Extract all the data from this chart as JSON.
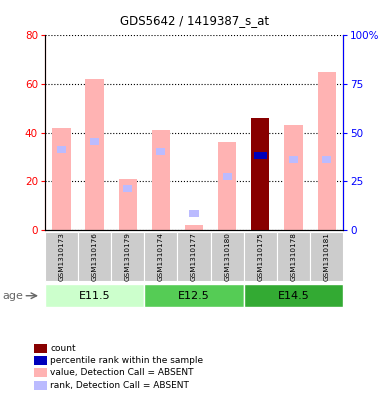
{
  "title": "GDS5642 / 1419387_s_at",
  "samples": [
    "GSM1310173",
    "GSM1310176",
    "GSM1310179",
    "GSM1310174",
    "GSM1310177",
    "GSM1310180",
    "GSM1310175",
    "GSM1310178",
    "GSM1310181"
  ],
  "age_groups": [
    {
      "label": "E11.5",
      "start": 0,
      "end": 3
    },
    {
      "label": "E12.5",
      "start": 3,
      "end": 6
    },
    {
      "label": "E14.5",
      "start": 6,
      "end": 9
    }
  ],
  "age_colors": [
    "#ccffcc",
    "#55cc55",
    "#33aa33"
  ],
  "value_absent": [
    42,
    62,
    21,
    41,
    2,
    36,
    0,
    43,
    65
  ],
  "rank_absent_pct": [
    41,
    45,
    21,
    40,
    8,
    27,
    0,
    36,
    36
  ],
  "count": [
    0,
    0,
    0,
    0,
    0,
    0,
    46,
    0,
    0
  ],
  "percentile_rank_pct": [
    0,
    0,
    0,
    0,
    0,
    0,
    38,
    0,
    0
  ],
  "left_ylim": [
    0,
    80
  ],
  "right_ylim": [
    0,
    100
  ],
  "left_yticks": [
    0,
    20,
    40,
    60,
    80
  ],
  "right_yticks": [
    0,
    25,
    50,
    75,
    100
  ],
  "right_yticklabels": [
    "0",
    "25",
    "50",
    "75",
    "100%"
  ],
  "color_value_absent": "#ffb3b3",
  "color_rank_absent": "#bbbbff",
  "color_count": "#880000",
  "color_percentile": "#0000bb",
  "legend_items": [
    {
      "color": "#880000",
      "label": "count"
    },
    {
      "color": "#0000bb",
      "label": "percentile rank within the sample"
    },
    {
      "color": "#ffb3b3",
      "label": "value, Detection Call = ABSENT"
    },
    {
      "color": "#bbbbff",
      "label": "rank, Detection Call = ABSENT"
    }
  ]
}
